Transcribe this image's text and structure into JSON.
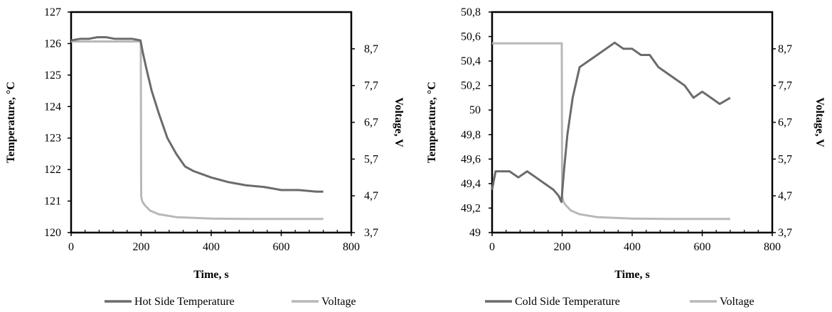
{
  "chart_data": [
    {
      "type": "line",
      "xlabel": "Time, s",
      "ylabel": "Temperature, °C",
      "y2label": "Voltage, V",
      "xlim": [
        0,
        800
      ],
      "ylim": [
        120,
        127
      ],
      "y2lim": [
        3.7,
        9.7
      ],
      "x_ticks": [
        "0",
        "200",
        "400",
        "600",
        "800"
      ],
      "y_ticks": [
        "120",
        "121",
        "122",
        "123",
        "124",
        "125",
        "126",
        "127"
      ],
      "y2_ticks": [
        "3,7",
        "4,7",
        "5,7",
        "6,7",
        "7,7",
        "8,7"
      ],
      "grid": false,
      "legend_position": "bottom",
      "series": [
        {
          "name": "Hot Side Temperature",
          "axis": "left",
          "color": "#6b6b6b",
          "x": [
            0,
            25,
            50,
            75,
            100,
            125,
            150,
            175,
            198,
            205,
            215,
            230,
            250,
            275,
            300,
            325,
            350,
            375,
            400,
            450,
            500,
            550,
            600,
            650,
            700,
            720
          ],
          "values": [
            126.1,
            126.15,
            126.15,
            126.2,
            126.2,
            126.15,
            126.15,
            126.15,
            126.1,
            125.7,
            125.2,
            124.5,
            123.8,
            123.0,
            122.5,
            122.1,
            121.95,
            121.85,
            121.75,
            121.6,
            121.5,
            121.45,
            121.35,
            121.35,
            121.3,
            121.3
          ]
        },
        {
          "name": "Voltage",
          "axis": "right",
          "color": "#b8b8b8",
          "x": [
            0,
            50,
            100,
            150,
            199,
            200,
            203,
            210,
            225,
            250,
            300,
            400,
            500,
            600,
            720
          ],
          "values": [
            8.9,
            8.9,
            8.9,
            8.9,
            8.9,
            4.7,
            4.55,
            4.45,
            4.3,
            4.2,
            4.12,
            4.08,
            4.07,
            4.07,
            4.07
          ]
        }
      ]
    },
    {
      "type": "line",
      "xlabel": "Time, s",
      "ylabel": "Temperature, °C",
      "y2label": "Voltage, V",
      "xlim": [
        0,
        800
      ],
      "ylim": [
        49,
        50.8
      ],
      "y2lim": [
        3.7,
        9.7
      ],
      "x_ticks": [
        "0",
        "200",
        "400",
        "600",
        "800"
      ],
      "y_ticks": [
        "49",
        "49,2",
        "49,4",
        "49,6",
        "49,8",
        "50",
        "50,2",
        "50,4",
        "50,6",
        "50,8"
      ],
      "y2_ticks": [
        "3,7",
        "4,7",
        "5,7",
        "6,7",
        "7,7",
        "8,7"
      ],
      "grid": false,
      "legend_position": "bottom",
      "series": [
        {
          "name": "Cold Side Temperature",
          "axis": "left",
          "color": "#6b6b6b",
          "x": [
            0,
            10,
            25,
            50,
            75,
            100,
            125,
            150,
            175,
            190,
            198,
            205,
            215,
            230,
            250,
            275,
            300,
            325,
            350,
            375,
            400,
            425,
            450,
            475,
            500,
            525,
            550,
            575,
            600,
            625,
            650,
            680
          ],
          "values": [
            49.35,
            49.5,
            49.5,
            49.5,
            49.45,
            49.5,
            49.45,
            49.4,
            49.35,
            49.3,
            49.25,
            49.5,
            49.8,
            50.1,
            50.35,
            50.4,
            50.45,
            50.5,
            50.55,
            50.5,
            50.5,
            50.45,
            50.45,
            50.35,
            50.3,
            50.25,
            50.2,
            50.1,
            50.15,
            50.1,
            50.05,
            50.1
          ]
        },
        {
          "name": "Voltage",
          "axis": "right",
          "color": "#b8b8b8",
          "x": [
            0,
            50,
            100,
            150,
            199,
            200,
            203,
            210,
            225,
            250,
            300,
            400,
            500,
            600,
            680
          ],
          "values": [
            8.85,
            8.85,
            8.85,
            8.85,
            8.85,
            4.7,
            4.55,
            4.45,
            4.3,
            4.2,
            4.12,
            4.08,
            4.07,
            4.07,
            4.07
          ]
        }
      ]
    }
  ]
}
